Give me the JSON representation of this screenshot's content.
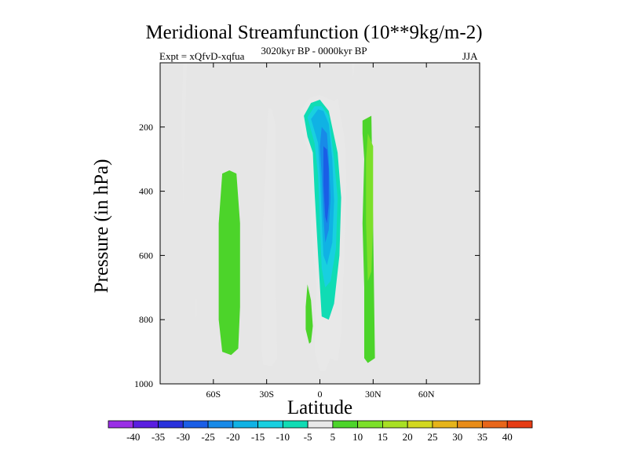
{
  "chart_data": {
    "type": "contour",
    "title": "Meridional Streamfunction (10**9kg/m-2)",
    "left_label": "Expt = xQfvD-xqfua",
    "center_label": "3020kyr BP - 0000kyr BP",
    "right_label": "JJA",
    "xlabel": "Latitude",
    "ylabel": "Pressure (in hPa)",
    "xlim": [
      -90,
      90
    ],
    "ylim": [
      1000,
      0
    ],
    "x_ticks": [
      {
        "value": -60,
        "label": "60S"
      },
      {
        "value": -30,
        "label": "30S"
      },
      {
        "value": 0,
        "label": "0"
      },
      {
        "value": 30,
        "label": "30N"
      },
      {
        "value": 60,
        "label": "60N"
      }
    ],
    "y_ticks": [
      {
        "value": 200,
        "label": "200"
      },
      {
        "value": 400,
        "label": "400"
      },
      {
        "value": 600,
        "label": "600"
      },
      {
        "value": 800,
        "label": "800"
      },
      {
        "value": 1000,
        "label": "1000"
      }
    ],
    "background_color": "#e6e6e6",
    "levels": [
      -40,
      -35,
      -30,
      -25,
      -20,
      -15,
      -10,
      -5,
      5,
      10,
      15,
      20,
      25,
      30,
      35,
      40
    ],
    "level_labels": [
      "-40",
      "-35",
      "-30",
      "-25",
      "-20",
      "-15",
      "-10",
      "-5",
      "5",
      "10",
      "15",
      "20",
      "25",
      "30",
      "35",
      "40"
    ],
    "colors": [
      "#9a2ee6",
      "#5a1ee0",
      "#2a32dc",
      "#1a5ee6",
      "#188ae8",
      "#10b2e4",
      "#18d0e0",
      "#10dcb4",
      "#e8e8e8",
      "#4cd42a",
      "#7ce02a",
      "#a8e024",
      "#d2d820",
      "#e6b41a",
      "#e88c18",
      "#e8661a",
      "#e63c14"
    ],
    "regions": [
      {
        "name": "high-lat-south-upper",
        "level": -5,
        "points": [
          [
            -77,
            0
          ],
          [
            -75,
            0
          ],
          [
            -76,
            200
          ],
          [
            -77,
            450
          ],
          [
            -78,
            200
          ]
        ]
      },
      {
        "name": "fragment-south-lower",
        "level": -5,
        "points": [
          [
            -70,
            735
          ],
          [
            -69.5,
            735
          ],
          [
            -69.5,
            790
          ],
          [
            -70,
            790
          ]
        ]
      },
      {
        "name": "fragment-top-north",
        "level": -5,
        "points": [
          [
            18,
            0
          ],
          [
            19.5,
            0
          ],
          [
            19,
            40
          ],
          [
            18.5,
            40
          ]
        ]
      },
      {
        "name": "southern-positive-cell",
        "level": 5,
        "points": [
          [
            -55,
            345
          ],
          [
            -51,
            335
          ],
          [
            -47,
            345
          ],
          [
            -45,
            500
          ],
          [
            -45,
            760
          ],
          [
            -46,
            890
          ],
          [
            -50,
            910
          ],
          [
            -55,
            900
          ],
          [
            -57,
            800
          ],
          [
            -57,
            500
          ]
        ]
      },
      {
        "name": "subtropical-south-negative",
        "level": -5,
        "points": [
          [
            -29,
            140
          ],
          [
            -27,
            145
          ],
          [
            -25,
            195
          ],
          [
            -25,
            400
          ],
          [
            -25,
            700
          ],
          [
            -24,
            920
          ],
          [
            -27,
            945
          ],
          [
            -32,
            940
          ],
          [
            -33,
            880
          ],
          [
            -33,
            700
          ],
          [
            -32,
            500
          ],
          [
            -30,
            250
          ]
        ]
      },
      {
        "name": "equatorial-positive-sliver",
        "level": 5,
        "points": [
          [
            -7,
            690
          ],
          [
            -5,
            740
          ],
          [
            -4,
            820
          ],
          [
            -5,
            870
          ],
          [
            -6,
            875
          ],
          [
            -8,
            830
          ],
          [
            -8,
            760
          ]
        ]
      },
      {
        "name": "northern-positive-cell",
        "level": 5,
        "points": [
          [
            24,
            180
          ],
          [
            29,
            165
          ],
          [
            30,
            500
          ],
          [
            31,
            920
          ],
          [
            27,
            935
          ],
          [
            25,
            920
          ],
          [
            25,
            700
          ],
          [
            24,
            500
          ],
          [
            25,
            300
          ],
          [
            24,
            220
          ]
        ]
      },
      {
        "name": "northern-positive-inner",
        "level": 10,
        "points": [
          [
            27,
            220
          ],
          [
            30,
            260
          ],
          [
            30,
            500
          ],
          [
            29,
            650
          ],
          [
            27,
            680
          ],
          [
            26,
            500
          ],
          [
            26,
            300
          ]
        ]
      },
      {
        "name": "equatorial-negative-5",
        "level": -5,
        "points": [
          [
            -11,
            150
          ],
          [
            -6,
            110
          ],
          [
            0,
            100
          ],
          [
            8,
            120
          ],
          [
            10,
            110
          ],
          [
            14,
            240
          ],
          [
            15,
            380
          ],
          [
            14,
            560
          ],
          [
            12,
            850
          ],
          [
            10,
            930
          ],
          [
            6,
            920
          ],
          [
            3,
            960
          ],
          [
            0,
            960
          ],
          [
            -3,
            900
          ],
          [
            -2,
            700
          ],
          [
            -5,
            500
          ],
          [
            -4,
            300
          ],
          [
            -8,
            250
          ],
          [
            -11,
            190
          ]
        ]
      },
      {
        "name": "equatorial-negative-10",
        "level": -10,
        "points": [
          [
            -9,
            165
          ],
          [
            -5,
            125
          ],
          [
            0,
            115
          ],
          [
            5,
            150
          ],
          [
            10,
            280
          ],
          [
            12,
            420
          ],
          [
            11,
            600
          ],
          [
            8,
            750
          ],
          [
            5,
            800
          ],
          [
            1,
            790
          ],
          [
            -1,
            600
          ],
          [
            -3,
            400
          ],
          [
            -4,
            280
          ],
          [
            -7,
            230
          ]
        ]
      },
      {
        "name": "equatorial-negative-15",
        "level": -15,
        "points": [
          [
            -7,
            170
          ],
          [
            -3,
            135
          ],
          [
            1,
            135
          ],
          [
            5,
            165
          ],
          [
            8,
            300
          ],
          [
            10,
            420
          ],
          [
            9,
            580
          ],
          [
            6,
            680
          ],
          [
            3,
            700
          ],
          [
            1,
            640
          ],
          [
            0,
            500
          ],
          [
            -1,
            350
          ],
          [
            -3,
            250
          ]
        ]
      },
      {
        "name": "equatorial-negative-20",
        "level": -20,
        "points": [
          [
            -5,
            175
          ],
          [
            -1,
            145
          ],
          [
            2,
            150
          ],
          [
            5,
            190
          ],
          [
            7,
            300
          ],
          [
            8,
            430
          ],
          [
            7,
            560
          ],
          [
            4,
            630
          ],
          [
            2,
            600
          ],
          [
            1,
            480
          ],
          [
            0,
            350
          ],
          [
            -1,
            250
          ]
        ]
      },
      {
        "name": "equatorial-negative-25",
        "level": -25,
        "points": [
          [
            1,
            200
          ],
          [
            4,
            220
          ],
          [
            5,
            300
          ],
          [
            6,
            420
          ],
          [
            5,
            520
          ],
          [
            3,
            560
          ],
          [
            2,
            480
          ],
          [
            1,
            350
          ],
          [
            0,
            260
          ]
        ]
      },
      {
        "name": "equatorial-negative-30",
        "level": -30,
        "points": [
          [
            2,
            260
          ],
          [
            4,
            270
          ],
          [
            5,
            330
          ],
          [
            5,
            440
          ],
          [
            4,
            500
          ],
          [
            3,
            480
          ],
          [
            2,
            380
          ]
        ]
      }
    ]
  }
}
